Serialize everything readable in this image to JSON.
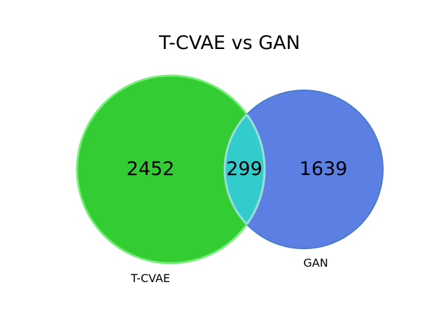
{
  "title": "T-CVAE vs GAN",
  "sets": [
    {
      "label": "T-CVAE",
      "only_count": "2452",
      "color": "#33cc33",
      "edge_color": "#77ee77"
    },
    {
      "label": "GAN",
      "only_count": "1639",
      "color": "#5b7fe3",
      "edge_color": "#4a7cc9"
    }
  ],
  "intersection": {
    "count": "299",
    "color": "#33cccc",
    "edge_color": "#99dddd"
  }
}
